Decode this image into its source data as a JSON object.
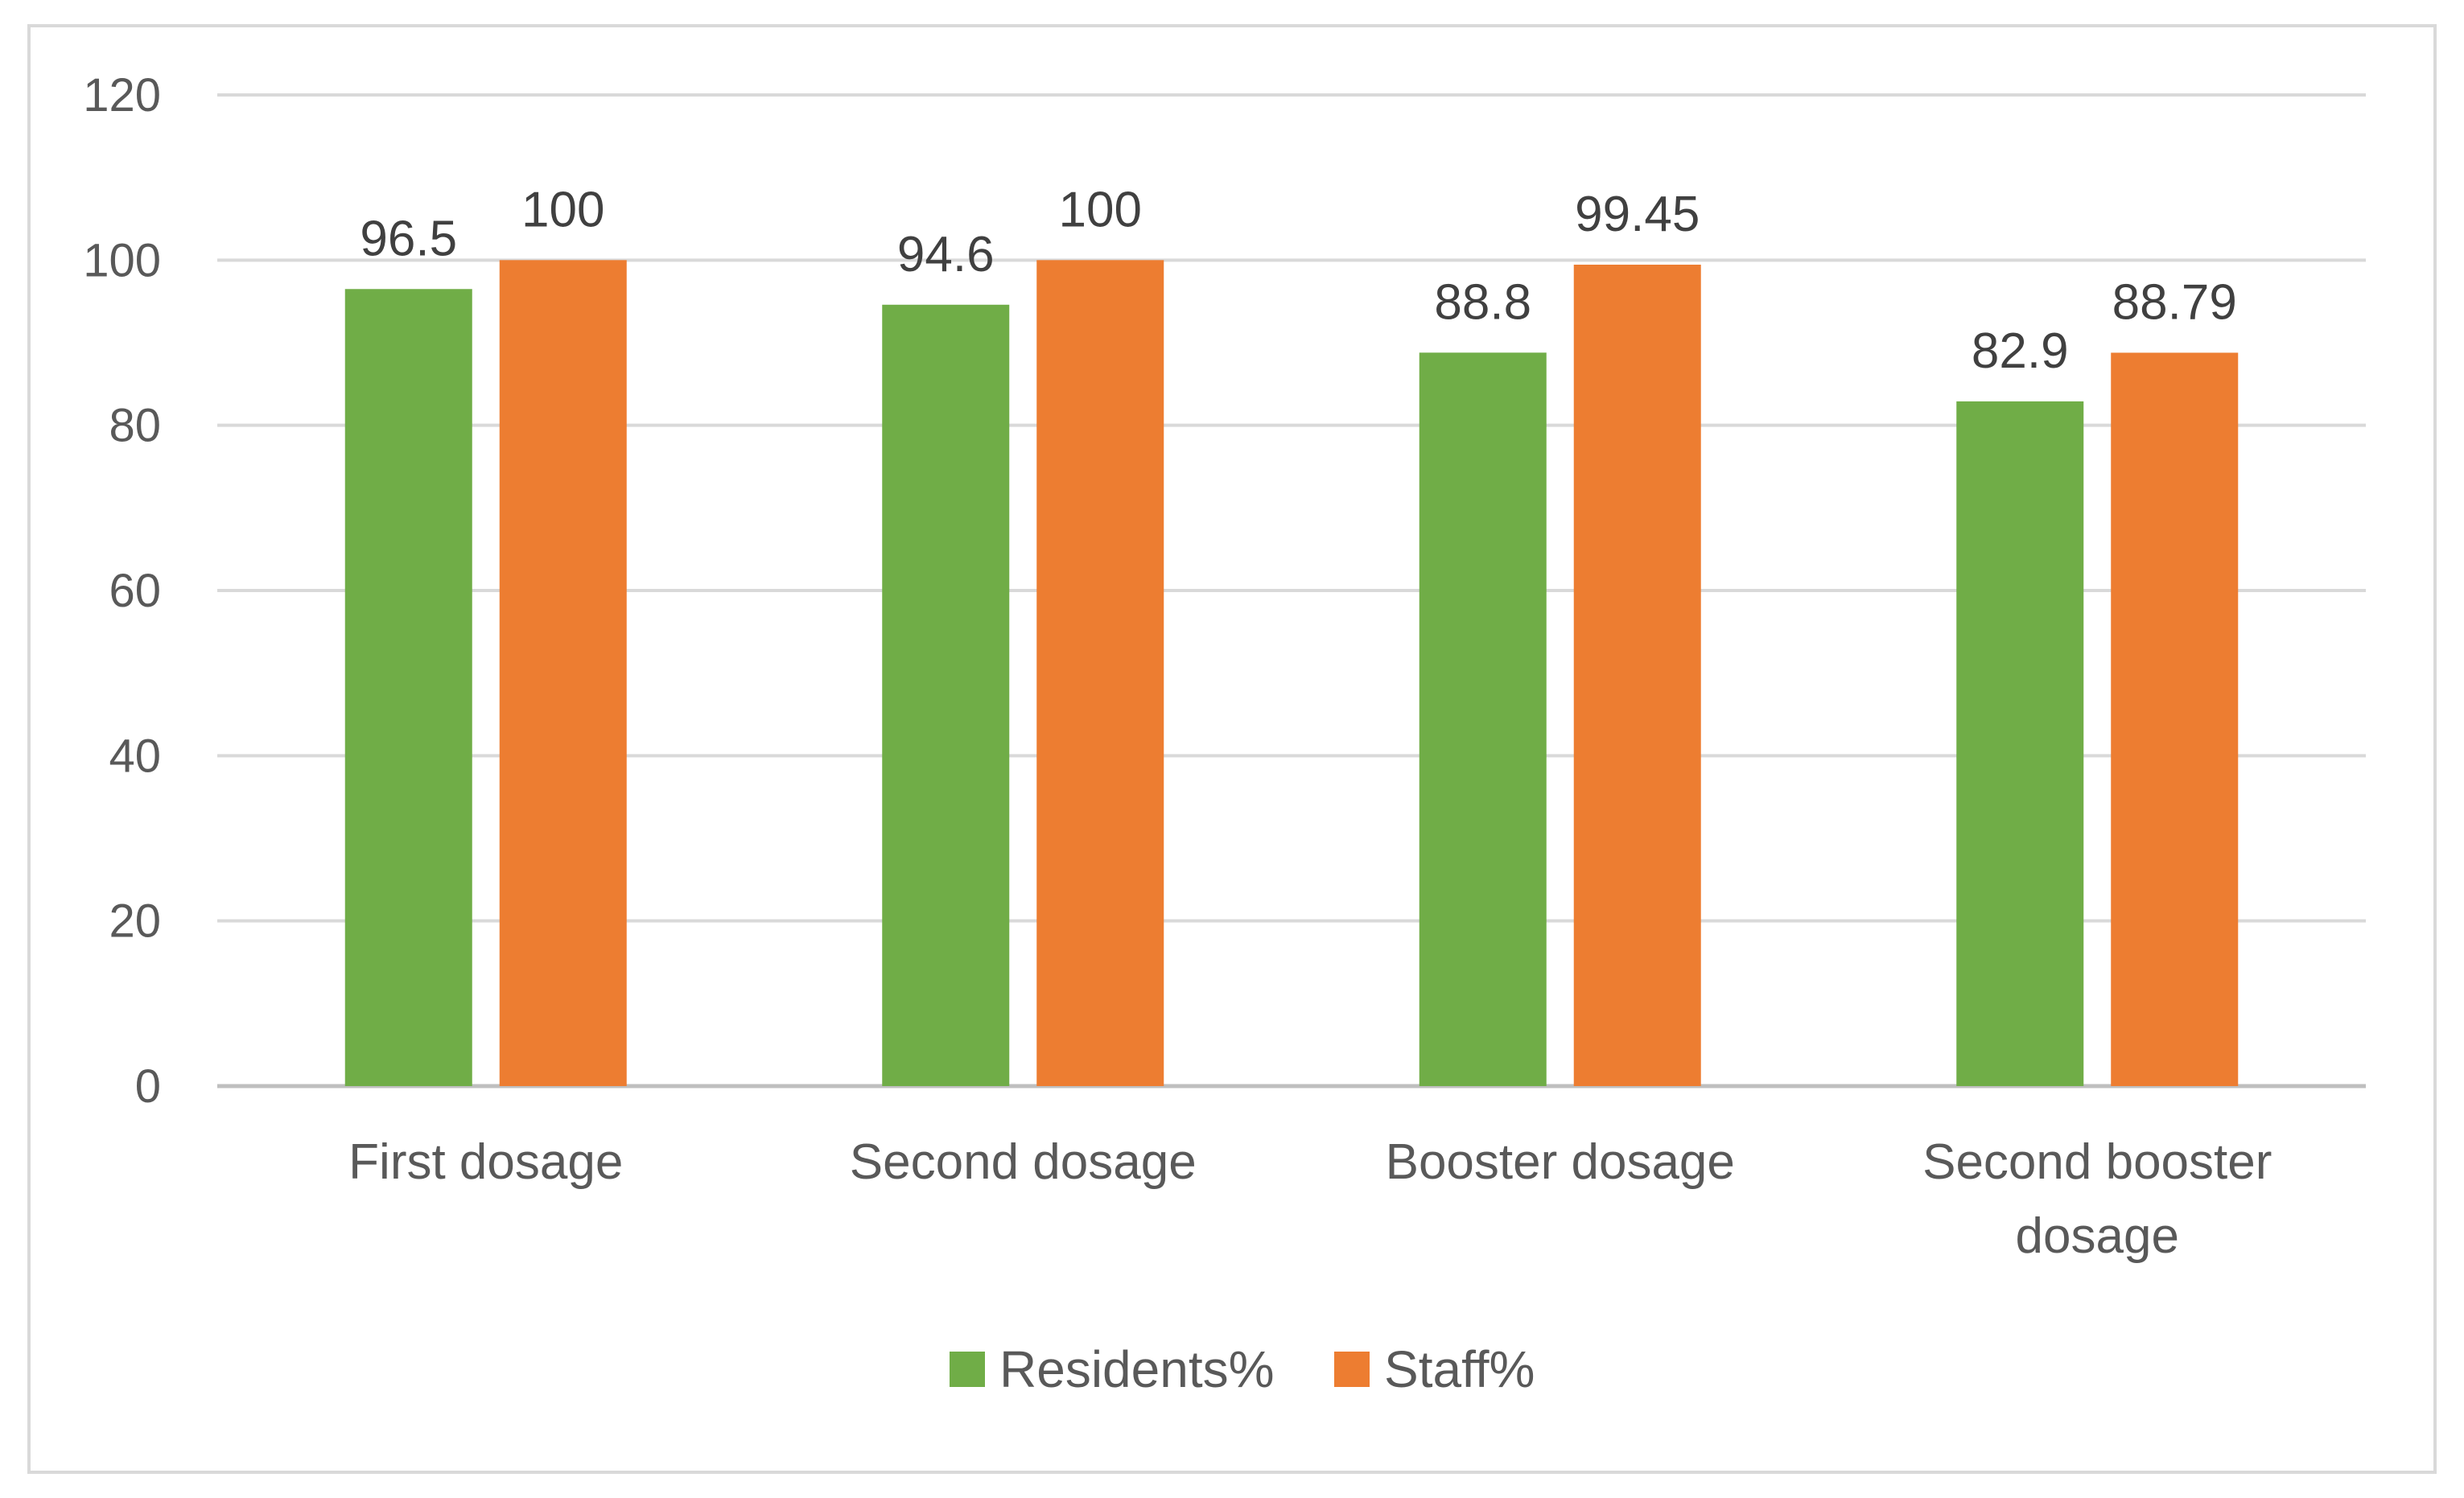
{
  "chart_data": {
    "type": "bar",
    "categories": [
      [
        "First dosage"
      ],
      [
        "Second dosage"
      ],
      [
        "Booster dosage"
      ],
      [
        "Second booster",
        "dosage"
      ]
    ],
    "series": [
      {
        "name": "Residents%",
        "color": "#70ad47",
        "values": [
          96.5,
          94.6,
          88.8,
          82.9
        ],
        "labels": [
          "96.5",
          "94.6",
          "88.8",
          "82.9"
        ]
      },
      {
        "name": "Staff%",
        "color": "#ed7d31",
        "values": [
          100,
          100,
          99.45,
          88.79
        ],
        "labels": [
          "100",
          "100",
          "99.45",
          "88.79"
        ]
      }
    ],
    "ylim": [
      0,
      120
    ],
    "yticks": [
      0,
      20,
      40,
      60,
      80,
      100,
      120
    ],
    "grid": true,
    "legend": "bottom",
    "title": "",
    "xlabel": "",
    "ylabel": ""
  }
}
